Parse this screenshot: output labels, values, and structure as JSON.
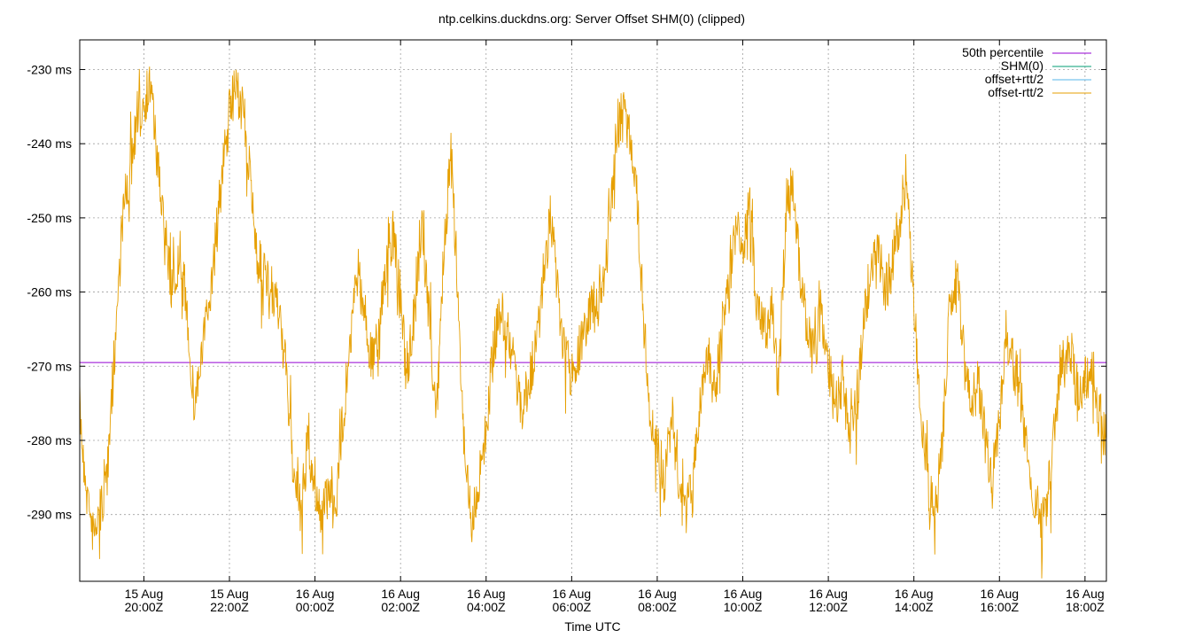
{
  "chart_data": {
    "type": "line",
    "title": "ntp.celkins.duckdns.org: Server Offset SHM(0) (clipped)",
    "xlabel": "Time UTC",
    "ylabel": "",
    "y_unit": "ms",
    "ylim": [
      -299,
      -226
    ],
    "x_range": [
      "2025-08-15T18:30Z",
      "2025-08-16T18:30Z"
    ],
    "grid": true,
    "legend_position": "top-right",
    "y_ticks": [
      {
        "value": -230,
        "label": "-230 ms"
      },
      {
        "value": -240,
        "label": "-240 ms"
      },
      {
        "value": -250,
        "label": "-250 ms"
      },
      {
        "value": -260,
        "label": "-260 ms"
      },
      {
        "value": -270,
        "label": "-270 ms"
      },
      {
        "value": -280,
        "label": "-280 ms"
      },
      {
        "value": -290,
        "label": "-290 ms"
      }
    ],
    "x_ticks": [
      {
        "t": "2025-08-15T20:00Z",
        "line1": "15 Aug",
        "line2": "20:00Z"
      },
      {
        "t": "2025-08-15T22:00Z",
        "line1": "15 Aug",
        "line2": "22:00Z"
      },
      {
        "t": "2025-08-16T00:00Z",
        "line1": "16 Aug",
        "line2": "00:00Z"
      },
      {
        "t": "2025-08-16T02:00Z",
        "line1": "16 Aug",
        "line2": "02:00Z"
      },
      {
        "t": "2025-08-16T04:00Z",
        "line1": "16 Aug",
        "line2": "04:00Z"
      },
      {
        "t": "2025-08-16T06:00Z",
        "line1": "16 Aug",
        "line2": "06:00Z"
      },
      {
        "t": "2025-08-16T08:00Z",
        "line1": "16 Aug",
        "line2": "08:00Z"
      },
      {
        "t": "2025-08-16T10:00Z",
        "line1": "16 Aug",
        "line2": "10:00Z"
      },
      {
        "t": "2025-08-16T12:00Z",
        "line1": "16 Aug",
        "line2": "12:00Z"
      },
      {
        "t": "2025-08-16T14:00Z",
        "line1": "16 Aug",
        "line2": "14:00Z"
      },
      {
        "t": "2025-08-16T16:00Z",
        "line1": "16 Aug",
        "line2": "16:00Z"
      },
      {
        "t": "2025-08-16T18:00Z",
        "line1": "16 Aug",
        "line2": "18:00Z"
      }
    ],
    "series": [
      {
        "name": "50th percentile",
        "color": "#9400d3",
        "type": "hline",
        "value": -269.5
      },
      {
        "name": "SHM(0)",
        "color": "#009e73",
        "values": []
      },
      {
        "name": "offset+rtt/2",
        "color": "#56b4e9",
        "values": []
      },
      {
        "name": "offset-rtt/2",
        "color": "#e69f00",
        "points": [
          [
            "2025-08-15T18:30Z",
            -276
          ],
          [
            "2025-08-15T18:40Z",
            -287
          ],
          [
            "2025-08-15T18:50Z",
            -293
          ],
          [
            "2025-08-15T19:00Z",
            -289
          ],
          [
            "2025-08-15T19:10Z",
            -284
          ],
          [
            "2025-08-15T19:20Z",
            -266
          ],
          [
            "2025-08-15T19:30Z",
            -250
          ],
          [
            "2025-08-15T19:40Z",
            -244
          ],
          [
            "2025-08-15T19:50Z",
            -238
          ],
          [
            "2025-08-15T20:00Z",
            -234
          ],
          [
            "2025-08-15T20:10Z",
            -232
          ],
          [
            "2025-08-15T20:20Z",
            -244
          ],
          [
            "2025-08-15T20:30Z",
            -252
          ],
          [
            "2025-08-15T20:40Z",
            -260
          ],
          [
            "2025-08-15T20:50Z",
            -256
          ],
          [
            "2025-08-15T21:00Z",
            -262
          ],
          [
            "2025-08-15T21:10Z",
            -275
          ],
          [
            "2025-08-15T21:20Z",
            -270
          ],
          [
            "2025-08-15T21:30Z",
            -262
          ],
          [
            "2025-08-15T21:40Z",
            -254
          ],
          [
            "2025-08-15T21:50Z",
            -244
          ],
          [
            "2025-08-15T22:00Z",
            -236
          ],
          [
            "2025-08-15T22:10Z",
            -232
          ],
          [
            "2025-08-15T22:20Z",
            -236
          ],
          [
            "2025-08-15T22:30Z",
            -246
          ],
          [
            "2025-08-15T22:40Z",
            -256
          ],
          [
            "2025-08-15T22:50Z",
            -258
          ],
          [
            "2025-08-15T23:00Z",
            -262
          ],
          [
            "2025-08-15T23:10Z",
            -262
          ],
          [
            "2025-08-15T23:20Z",
            -272
          ],
          [
            "2025-08-15T23:30Z",
            -284
          ],
          [
            "2025-08-15T23:40Z",
            -290
          ],
          [
            "2025-08-15T23:50Z",
            -280
          ],
          [
            "2025-08-16T00:00Z",
            -286
          ],
          [
            "2025-08-16T00:10Z",
            -291
          ],
          [
            "2025-08-16T00:20Z",
            -286
          ],
          [
            "2025-08-16T00:30Z",
            -288
          ],
          [
            "2025-08-16T00:40Z",
            -276
          ],
          [
            "2025-08-16T00:50Z",
            -266
          ],
          [
            "2025-08-16T01:00Z",
            -257
          ],
          [
            "2025-08-16T01:10Z",
            -263
          ],
          [
            "2025-08-16T01:20Z",
            -270
          ],
          [
            "2025-08-16T01:30Z",
            -264
          ],
          [
            "2025-08-16T01:40Z",
            -256
          ],
          [
            "2025-08-16T01:50Z",
            -252
          ],
          [
            "2025-08-16T02:00Z",
            -262
          ],
          [
            "2025-08-16T02:10Z",
            -270
          ],
          [
            "2025-08-16T02:20Z",
            -262
          ],
          [
            "2025-08-16T02:30Z",
            -252
          ],
          [
            "2025-08-16T02:40Z",
            -262
          ],
          [
            "2025-08-16T02:50Z",
            -278
          ],
          [
            "2025-08-16T03:00Z",
            -256
          ],
          [
            "2025-08-16T03:10Z",
            -240
          ],
          [
            "2025-08-16T03:20Z",
            -260
          ],
          [
            "2025-08-16T03:30Z",
            -282
          ],
          [
            "2025-08-16T03:40Z",
            -291
          ],
          [
            "2025-08-16T03:50Z",
            -285
          ],
          [
            "2025-08-16T04:00Z",
            -278
          ],
          [
            "2025-08-16T04:10Z",
            -268
          ],
          [
            "2025-08-16T04:20Z",
            -262
          ],
          [
            "2025-08-16T04:30Z",
            -266
          ],
          [
            "2025-08-16T04:40Z",
            -270
          ],
          [
            "2025-08-16T04:50Z",
            -276
          ],
          [
            "2025-08-16T05:00Z",
            -272
          ],
          [
            "2025-08-16T05:10Z",
            -268
          ],
          [
            "2025-08-16T05:20Z",
            -258
          ],
          [
            "2025-08-16T05:30Z",
            -250
          ],
          [
            "2025-08-16T05:40Z",
            -260
          ],
          [
            "2025-08-16T05:50Z",
            -268
          ],
          [
            "2025-08-16T06:00Z",
            -272
          ],
          [
            "2025-08-16T06:10Z",
            -268
          ],
          [
            "2025-08-16T06:20Z",
            -264
          ],
          [
            "2025-08-16T06:30Z",
            -262
          ],
          [
            "2025-08-16T06:40Z",
            -262
          ],
          [
            "2025-08-16T06:50Z",
            -254
          ],
          [
            "2025-08-16T07:00Z",
            -242
          ],
          [
            "2025-08-16T07:10Z",
            -236
          ],
          [
            "2025-08-16T07:20Z",
            -238
          ],
          [
            "2025-08-16T07:30Z",
            -244
          ],
          [
            "2025-08-16T07:40Z",
            -262
          ],
          [
            "2025-08-16T07:50Z",
            -278
          ],
          [
            "2025-08-16T08:00Z",
            -280
          ],
          [
            "2025-08-16T08:10Z",
            -286
          ],
          [
            "2025-08-16T08:20Z",
            -276
          ],
          [
            "2025-08-16T08:30Z",
            -286
          ],
          [
            "2025-08-16T08:40Z",
            -290
          ],
          [
            "2025-08-16T08:50Z",
            -286
          ],
          [
            "2025-08-16T09:00Z",
            -276
          ],
          [
            "2025-08-16T09:10Z",
            -268
          ],
          [
            "2025-08-16T09:20Z",
            -274
          ],
          [
            "2025-08-16T09:30Z",
            -266
          ],
          [
            "2025-08-16T09:40Z",
            -260
          ],
          [
            "2025-08-16T09:50Z",
            -252
          ],
          [
            "2025-08-16T10:00Z",
            -254
          ],
          [
            "2025-08-16T10:10Z",
            -248
          ],
          [
            "2025-08-16T10:20Z",
            -262
          ],
          [
            "2025-08-16T10:30Z",
            -266
          ],
          [
            "2025-08-16T10:40Z",
            -262
          ],
          [
            "2025-08-16T10:50Z",
            -272
          ],
          [
            "2025-08-16T11:00Z",
            -252
          ],
          [
            "2025-08-16T11:10Z",
            -244
          ],
          [
            "2025-08-16T11:20Z",
            -258
          ],
          [
            "2025-08-16T11:30Z",
            -264
          ],
          [
            "2025-08-16T11:40Z",
            -270
          ],
          [
            "2025-08-16T11:50Z",
            -262
          ],
          [
            "2025-08-16T12:00Z",
            -270
          ],
          [
            "2025-08-16T12:10Z",
            -276
          ],
          [
            "2025-08-16T12:20Z",
            -272
          ],
          [
            "2025-08-16T12:30Z",
            -280
          ],
          [
            "2025-08-16T12:40Z",
            -276
          ],
          [
            "2025-08-16T12:50Z",
            -262
          ],
          [
            "2025-08-16T13:00Z",
            -258
          ],
          [
            "2025-08-16T13:10Z",
            -254
          ],
          [
            "2025-08-16T13:20Z",
            -260
          ],
          [
            "2025-08-16T13:30Z",
            -256
          ],
          [
            "2025-08-16T13:40Z",
            -250
          ],
          [
            "2025-08-16T13:50Z",
            -244
          ],
          [
            "2025-08-16T14:00Z",
            -262
          ],
          [
            "2025-08-16T14:10Z",
            -276
          ],
          [
            "2025-08-16T14:20Z",
            -286
          ],
          [
            "2025-08-16T14:30Z",
            -290
          ],
          [
            "2025-08-16T14:40Z",
            -280
          ],
          [
            "2025-08-16T14:50Z",
            -262
          ],
          [
            "2025-08-16T15:00Z",
            -258
          ],
          [
            "2025-08-16T15:10Z",
            -268
          ],
          [
            "2025-08-16T15:20Z",
            -276
          ],
          [
            "2025-08-16T15:30Z",
            -272
          ],
          [
            "2025-08-16T15:40Z",
            -280
          ],
          [
            "2025-08-16T15:50Z",
            -286
          ],
          [
            "2025-08-16T16:00Z",
            -276
          ],
          [
            "2025-08-16T16:10Z",
            -268
          ],
          [
            "2025-08-16T16:20Z",
            -270
          ],
          [
            "2025-08-16T16:30Z",
            -274
          ],
          [
            "2025-08-16T16:40Z",
            -282
          ],
          [
            "2025-08-16T16:50Z",
            -288
          ],
          [
            "2025-08-16T17:00Z",
            -292
          ],
          [
            "2025-08-16T17:10Z",
            -286
          ],
          [
            "2025-08-16T17:20Z",
            -276
          ],
          [
            "2025-08-16T17:30Z",
            -270
          ],
          [
            "2025-08-16T17:40Z",
            -268
          ],
          [
            "2025-08-16T17:50Z",
            -274
          ],
          [
            "2025-08-16T18:00Z",
            -272
          ],
          [
            "2025-08-16T18:10Z",
            -270
          ],
          [
            "2025-08-16T18:20Z",
            -276
          ],
          [
            "2025-08-16T18:30Z",
            -280
          ]
        ]
      }
    ]
  }
}
